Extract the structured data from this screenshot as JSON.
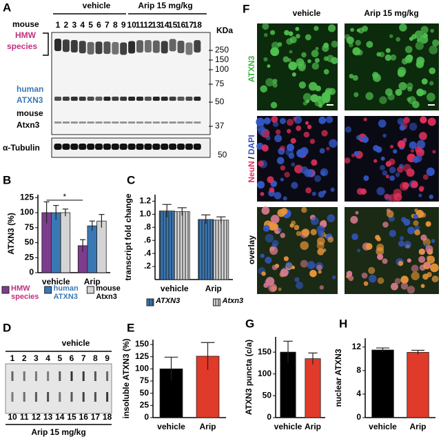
{
  "panel_a": {
    "letter": "A",
    "groups": [
      "vehicle",
      "Arip 15 mg/kg"
    ],
    "lane_row_label": "mouse",
    "lanes": [
      "1",
      "2",
      "3",
      "4",
      "5",
      "6",
      "7",
      "8",
      "9",
      "10",
      "11",
      "12",
      "13",
      "14",
      "15",
      "16",
      "17",
      "18"
    ],
    "size_unit": "KDa",
    "size_markers": [
      "250",
      "150",
      "100",
      "75",
      "50",
      "37"
    ],
    "tubulin_marker": "50",
    "hmw_label": [
      "HMW",
      "species"
    ],
    "human_label": [
      "human",
      "ATXN3"
    ],
    "mouse_label": [
      "mouse",
      "Atxn3"
    ],
    "tubulin_label": "α-Tubulin"
  },
  "chart_data": [
    {
      "type": "bar",
      "letter": "B",
      "ylabel": "ATXN3 (%)",
      "categories": [
        "vehicle",
        "Arip"
      ],
      "ylim": [
        0,
        130
      ],
      "yticks": [
        0,
        25,
        50,
        75,
        100,
        125
      ],
      "annotation": "*",
      "legend": "bottom",
      "series": [
        {
          "name": "HMW species",
          "color": "#7d3c8c",
          "text_color": "#c0307f",
          "values": [
            100,
            45
          ],
          "errors": [
            18,
            10
          ]
        },
        {
          "name": "human ATXN3",
          "color": "#3a78b5",
          "text_color": "#3a78b5",
          "values": [
            100,
            78
          ],
          "errors": [
            12,
            8
          ]
        },
        {
          "name": "mouse Atxn3",
          "color": "#d4d4d4",
          "text_color": "#000000",
          "values": [
            100,
            86
          ],
          "errors": [
            6,
            11
          ]
        }
      ]
    },
    {
      "type": "bar",
      "letter": "C",
      "ylabel": "transcript fold change",
      "categories": [
        "vehicle",
        "Arip"
      ],
      "ylim": [
        0,
        1.3
      ],
      "yticks": [
        {
          "value": 0.2,
          "label": ".2"
        },
        {
          "value": 0.4,
          "label": ".4"
        },
        {
          "value": 0.6,
          "label": ".6"
        },
        {
          "value": 0.8,
          "label": ".8"
        },
        {
          "value": 1.0,
          "label": "1.0"
        },
        1.2
      ],
      "hatch": true,
      "legend": "bottom",
      "series": [
        {
          "name": "ATXN3",
          "color": "#3a78b5",
          "values": [
            1.05,
            0.92
          ],
          "errors": [
            0.1,
            0.07
          ]
        },
        {
          "name": "Atxn3",
          "color": "#d4d4d4",
          "values": [
            1.04,
            0.91
          ],
          "errors": [
            0.06,
            0.05
          ]
        }
      ]
    },
    {
      "type": "bar",
      "letter": "E",
      "ylabel": "insoluble ATXN3 (%)",
      "categories": [
        "vehicle",
        "Arip"
      ],
      "ylim": [
        0,
        160
      ],
      "yticks": [
        0,
        25,
        50,
        75,
        100,
        125,
        150
      ],
      "colors": [
        "#000000",
        "#e03a2a"
      ],
      "values": [
        100,
        126
      ],
      "errors": [
        24,
        28
      ]
    },
    {
      "type": "bar",
      "letter": "G",
      "ylabel": "ATXN3 puncta (c/a)",
      "categories": [
        "vehicle",
        "Arip"
      ],
      "ylim": [
        0,
        185
      ],
      "yticks": [
        0,
        50,
        100,
        150
      ],
      "colors": [
        "#000000",
        "#e03a2a"
      ],
      "values": [
        150,
        135
      ],
      "errors": [
        25,
        13
      ]
    },
    {
      "type": "bar",
      "letter": "H",
      "ylabel": "nuclear ATXN3",
      "categories": [
        "vehicle",
        "Arip"
      ],
      "ylim": [
        0,
        13.5
      ],
      "yticks": [
        0,
        4,
        8,
        12
      ],
      "colors": [
        "#000000",
        "#e03a2a"
      ],
      "values": [
        11.5,
        11.1
      ],
      "errors": [
        0.35,
        0.35
      ]
    }
  ],
  "panel_d": {
    "letter": "D",
    "top_label": "vehicle",
    "top_lanes": [
      "1",
      "2",
      "3",
      "4",
      "5",
      "6",
      "7",
      "8",
      "9"
    ],
    "bottom_lanes": [
      "10",
      "11",
      "12",
      "13",
      "14",
      "15",
      "16",
      "17",
      "18"
    ],
    "bottom_label": "Arip 15 mg/kg"
  },
  "panel_f": {
    "letter": "F",
    "columns": [
      "vehicle",
      "Arip 15 mg/kg"
    ],
    "row1": "ATXN3",
    "row2": [
      "NeuN",
      "/",
      "DAPI"
    ],
    "row3": "overlay"
  }
}
